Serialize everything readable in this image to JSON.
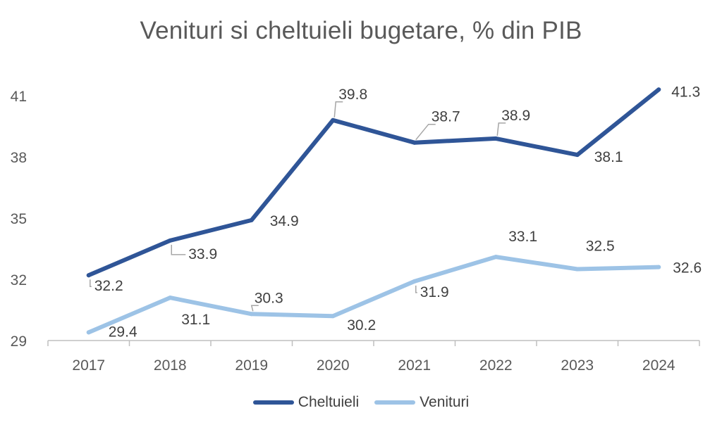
{
  "chart_data": {
    "type": "line",
    "title": "Venituri si cheltuieli bugetare, % din PIB",
    "categories": [
      "2017",
      "2018",
      "2019",
      "2020",
      "2021",
      "2022",
      "2023",
      "2024"
    ],
    "ylim": [
      29,
      42.5
    ],
    "yticks": [
      "29",
      "32",
      "35",
      "38",
      "41"
    ],
    "grid": false,
    "legend_position": "bottom",
    "series": [
      {
        "name": "Cheltuieli",
        "values": [
          32.2,
          33.9,
          34.9,
          39.8,
          38.7,
          38.9,
          38.1,
          41.3
        ],
        "labels": [
          "32.2",
          "33.9",
          "34.9",
          "39.8",
          "38.7",
          "38.9",
          "38.1",
          "41.3"
        ],
        "color": "#2F5597"
      },
      {
        "name": "Venituri",
        "values": [
          29.4,
          31.1,
          30.3,
          30.2,
          31.9,
          33.1,
          32.5,
          32.6
        ],
        "labels": [
          "29.4",
          "31.1",
          "30.3",
          "30.2",
          "31.9",
          "33.1",
          "32.5",
          "32.6"
        ],
        "color": "#9DC3E6"
      }
    ],
    "axis_color": "#BFBFBF",
    "leader_color": "#A6A6A6"
  }
}
